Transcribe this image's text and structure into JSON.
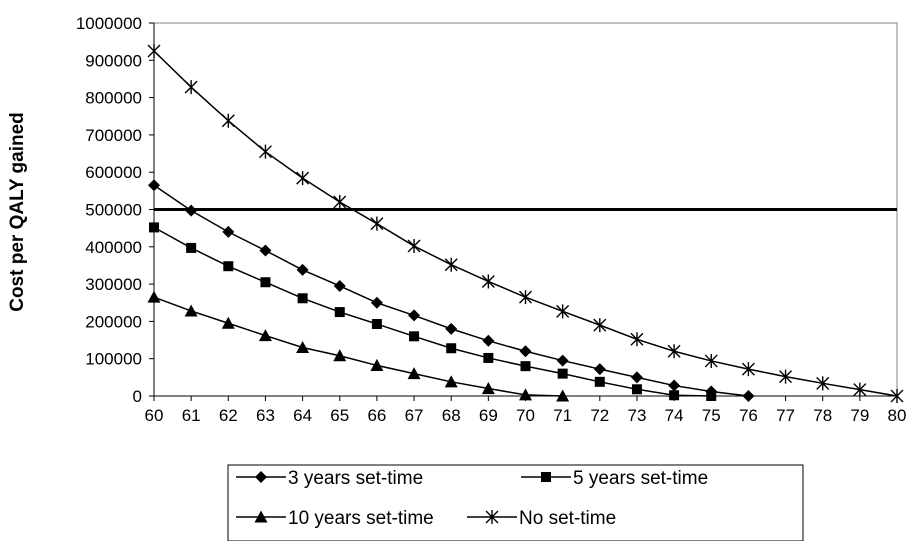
{
  "chart_data": {
    "type": "line",
    "ylabel": "Cost per QALY gained",
    "xlabel": "",
    "x": [
      60,
      61,
      62,
      63,
      64,
      65,
      66,
      67,
      68,
      69,
      70,
      71,
      72,
      73,
      74,
      75,
      76,
      77,
      78,
      79,
      80
    ],
    "ylim": [
      0,
      1000000
    ],
    "xlim": [
      60,
      80
    ],
    "y_ticks": [
      "0",
      "100000",
      "200000",
      "300000",
      "400000",
      "500000",
      "600000",
      "700000",
      "800000",
      "900000",
      "1000000"
    ],
    "x_ticks": [
      "60",
      "61",
      "62",
      "63",
      "64",
      "65",
      "66",
      "67",
      "68",
      "69",
      "70",
      "71",
      "72",
      "73",
      "74",
      "75",
      "76",
      "77",
      "78",
      "79",
      "80"
    ],
    "threshold": 500000,
    "grid": false,
    "legend_position": "bottom",
    "series": [
      {
        "name": "3 years set-time",
        "marker": "diamond",
        "x": [
          60,
          61,
          62,
          63,
          64,
          65,
          66,
          67,
          68,
          69,
          70,
          71,
          72,
          73,
          74,
          75,
          76
        ],
        "values": [
          565000,
          497000,
          440000,
          390000,
          338000,
          295000,
          250000,
          216000,
          180000,
          148000,
          120000,
          95000,
          72000,
          50000,
          28000,
          12000,
          0
        ]
      },
      {
        "name": "5 years set-time",
        "marker": "square",
        "x": [
          60,
          61,
          62,
          63,
          64,
          65,
          66,
          67,
          68,
          69,
          70,
          71,
          72,
          73,
          74,
          75
        ],
        "values": [
          452000,
          397000,
          348000,
          305000,
          262000,
          225000,
          193000,
          160000,
          128000,
          102000,
          80000,
          60000,
          38000,
          18000,
          2000,
          0
        ]
      },
      {
        "name": "10 years set-time",
        "marker": "triangle",
        "x": [
          60,
          61,
          62,
          63,
          64,
          65,
          66,
          67,
          68,
          69,
          70,
          71
        ],
        "values": [
          265000,
          228000,
          195000,
          162000,
          130000,
          108000,
          82000,
          60000,
          38000,
          20000,
          3000,
          0
        ]
      },
      {
        "name": "No set-time",
        "marker": "star",
        "x": [
          60,
          61,
          62,
          63,
          64,
          65,
          66,
          67,
          68,
          69,
          70,
          71,
          72,
          73,
          74,
          75,
          76,
          77,
          78,
          79,
          80
        ],
        "values": [
          925000,
          828000,
          738000,
          655000,
          584000,
          520000,
          462000,
          402000,
          352000,
          307000,
          265000,
          227000,
          190000,
          152000,
          120000,
          94000,
          72000,
          52000,
          34000,
          17000,
          0
        ]
      }
    ]
  }
}
